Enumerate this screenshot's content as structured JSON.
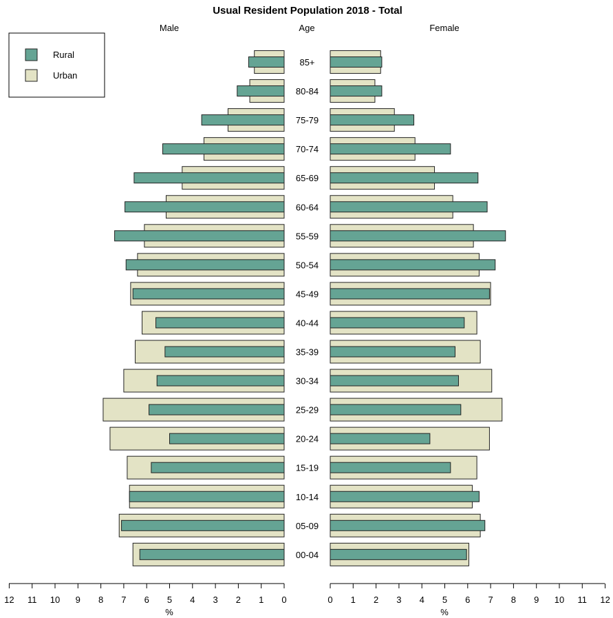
{
  "chart_data": {
    "type": "bar",
    "title": "Usual Resident Population 2018 - Total",
    "left_header": "Male",
    "center_header": "Age",
    "right_header": "Female",
    "categories": [
      "85+",
      "80-84",
      "75-79",
      "70-74",
      "65-69",
      "60-64",
      "55-59",
      "50-54",
      "45-49",
      "40-44",
      "35-39",
      "30-34",
      "25-29",
      "20-24",
      "15-19",
      "10-14",
      "05-09",
      "00-04"
    ],
    "series": [
      {
        "name": "Urban",
        "color": "#e3e3c5",
        "male": [
          1.3,
          1.5,
          2.45,
          3.5,
          4.45,
          5.15,
          6.1,
          6.4,
          6.7,
          6.2,
          6.5,
          7.0,
          7.9,
          7.6,
          6.85,
          6.75,
          7.2,
          6.6
        ],
        "female": [
          2.2,
          1.95,
          2.8,
          3.7,
          4.55,
          5.35,
          6.25,
          6.5,
          7.0,
          6.4,
          6.55,
          7.05,
          7.5,
          6.95,
          6.4,
          6.2,
          6.55,
          6.05
        ]
      },
      {
        "name": "Rural",
        "color": "#65a494",
        "male": [
          1.55,
          2.05,
          3.6,
          5.3,
          6.55,
          6.95,
          7.4,
          6.9,
          6.6,
          5.6,
          5.2,
          5.55,
          5.9,
          5.0,
          5.8,
          6.75,
          7.1,
          6.3
        ],
        "female": [
          2.25,
          2.25,
          3.65,
          5.25,
          6.45,
          6.85,
          7.65,
          7.2,
          6.95,
          5.85,
          5.45,
          5.6,
          5.7,
          4.35,
          5.25,
          6.5,
          6.75,
          5.95
        ]
      }
    ],
    "legend": {
      "position": "top-left",
      "entries": [
        "Rural",
        "Urban"
      ]
    },
    "x_axis": {
      "label": "%",
      "ticks": [
        0,
        1,
        2,
        3,
        4,
        5,
        6,
        7,
        8,
        9,
        10,
        11,
        12
      ],
      "xlim": [
        0,
        12
      ]
    },
    "grid": false
  }
}
